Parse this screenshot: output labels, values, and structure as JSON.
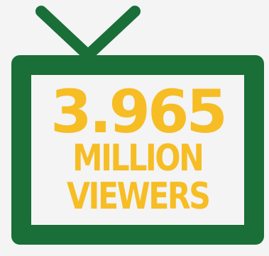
{
  "graphic": {
    "number": "3.965",
    "line1": "MILLION",
    "line2": "VIEWERS"
  },
  "colors": {
    "background": "#f4f4f4",
    "tv_green": "#1a6e38",
    "text_yellow": "#f6bd24"
  },
  "icons": {
    "tv": "tv-icon",
    "antenna": "antenna-icon"
  }
}
